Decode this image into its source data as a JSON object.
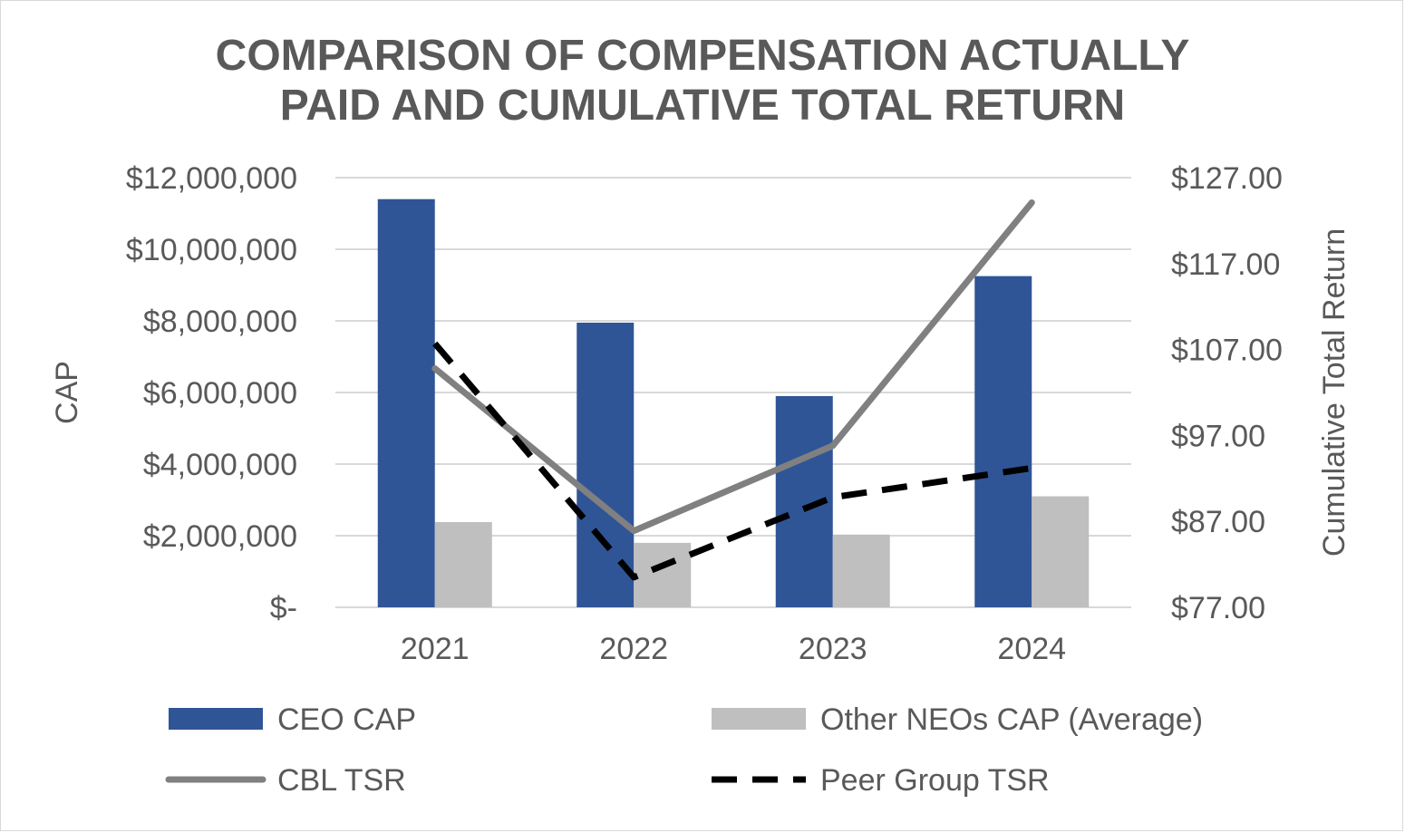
{
  "chart_data": {
    "type": "bar",
    "title_lines": [
      "COMPARISON OF COMPENSATION ACTUALLY",
      "PAID AND CUMULATIVE TOTAL RETURN"
    ],
    "categories": [
      "2021",
      "2022",
      "2023",
      "2024"
    ],
    "ylabel": "CAP",
    "y2label": "Cumulative Total Return",
    "ylim": [
      0,
      12000000
    ],
    "y2lim": [
      77,
      127
    ],
    "yticks": [
      0,
      2000000,
      4000000,
      6000000,
      8000000,
      10000000,
      12000000
    ],
    "yticklabels": [
      "$-",
      "$2,000,000",
      "$4,000,000",
      "$6,000,000",
      "$8,000,000",
      "$10,000,000",
      "$12,000,000"
    ],
    "y2ticks": [
      77,
      87,
      97,
      107,
      117,
      127
    ],
    "y2ticklabels": [
      "$77.00",
      "$87.00",
      "$97.00",
      "$107.00",
      "$117.00",
      "$127.00"
    ],
    "grid": true,
    "legend_position": "bottom",
    "series": [
      {
        "name": "CEO CAP",
        "type": "bar",
        "axis": "left",
        "color": "#2f5597",
        "values": [
          11400000,
          7950000,
          5900000,
          9250000
        ]
      },
      {
        "name": "Other NEOs CAP (Average)",
        "type": "bar",
        "axis": "left",
        "color": "#bfbfbf",
        "values": [
          2380000,
          1800000,
          2030000,
          3100000
        ]
      },
      {
        "name": "CBL TSR",
        "type": "line",
        "axis": "right",
        "color": "#808080",
        "dash": "solid",
        "values": [
          104.8,
          85.9,
          95.8,
          124.1
        ]
      },
      {
        "name": "Peer Group TSR",
        "type": "line",
        "axis": "right",
        "color": "#000000",
        "dash": "dashed",
        "values": [
          107.7,
          80.5,
          89.8,
          93.2
        ]
      }
    ]
  }
}
